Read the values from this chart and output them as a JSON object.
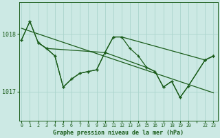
{
  "background_color": "#cce9e4",
  "grid_color": "#aad4cc",
  "line_color": "#1a5c1a",
  "xlabel": "Graphe pression niveau de la mer (hPa)",
  "ylim": [
    1016.55,
    1018.55
  ],
  "xlim": [
    -0.3,
    23.5
  ],
  "yticks": [
    1017,
    1018
  ],
  "series_jagged_x": [
    0,
    1,
    2,
    3,
    4,
    5,
    6,
    7,
    8,
    9,
    10,
    11,
    12,
    13,
    14,
    15,
    16,
    17,
    18,
    19,
    20,
    22,
    23
  ],
  "series_jagged_y": [
    1017.9,
    1018.22,
    1017.85,
    1017.75,
    1017.62,
    1017.08,
    1017.22,
    1017.32,
    1017.35,
    1017.38,
    1017.68,
    1017.95,
    1017.95,
    1017.75,
    1017.62,
    1017.42,
    1017.35,
    1017.08,
    1017.18,
    1016.9,
    1017.1,
    1017.55,
    1017.62
  ],
  "series_smooth_x": [
    0,
    1,
    2,
    3,
    10,
    11,
    12,
    22,
    23
  ],
  "series_smooth_y": [
    1017.9,
    1018.22,
    1017.85,
    1017.75,
    1017.68,
    1017.95,
    1017.95,
    1017.55,
    1017.62
  ],
  "series_vshape_x": [
    2,
    3,
    4,
    5,
    6,
    7,
    8,
    9,
    10,
    15,
    16,
    17,
    18,
    19,
    20,
    22,
    23
  ],
  "series_vshape_y": [
    1017.85,
    1017.75,
    1017.62,
    1017.08,
    1017.22,
    1017.32,
    1017.35,
    1017.38,
    1017.68,
    1017.42,
    1017.35,
    1017.08,
    1017.18,
    1016.9,
    1017.1,
    1017.55,
    1017.62
  ],
  "trend_x": [
    0,
    23
  ],
  "trend_y": [
    1018.1,
    1016.98
  ]
}
